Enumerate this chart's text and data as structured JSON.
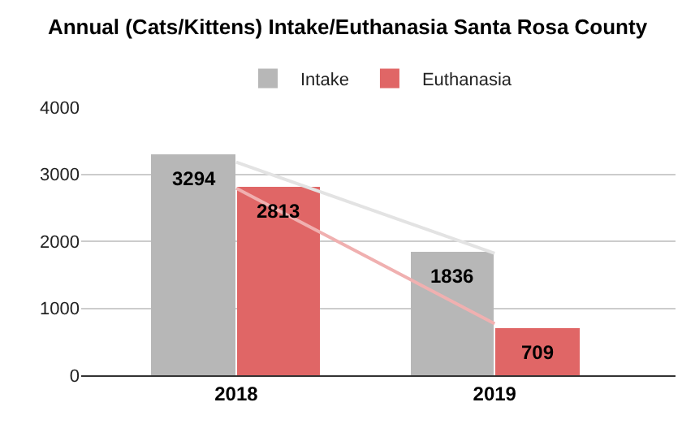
{
  "chart_data": {
    "type": "bar",
    "title": "Annual (Cats/Kittens) Intake/Euthanasia Santa Rosa County",
    "categories": [
      "2018",
      "2019"
    ],
    "series": [
      {
        "name": "Intake",
        "color": "#b7b7b7",
        "values": [
          3294,
          1836
        ],
        "value_labels": [
          "3294",
          "1836"
        ]
      },
      {
        "name": "Euthanasia",
        "color": "#e06666",
        "values": [
          2813,
          709
        ],
        "value_labels": [
          "2813",
          "709"
        ]
      },
      {
        "type": "line",
        "color": "#e3e3e3",
        "values": [
          3180,
          1820
        ]
      },
      {
        "type": "line",
        "color": "#f0b0b0",
        "values": [
          2790,
          770
        ]
      }
    ],
    "ylim": [
      0,
      4000
    ],
    "yticks": [
      0,
      1000,
      2000,
      3000,
      4000
    ],
    "grid": "y",
    "legend": "top"
  }
}
